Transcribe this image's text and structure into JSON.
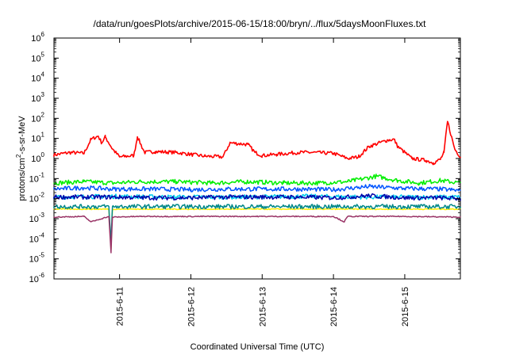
{
  "chart_data": {
    "type": "line",
    "title": "/data/run/goesPlots/archive/2015-06-15/18:00/bryn/../flux/5daysMoonFluxes.txt",
    "xlabel": "Coordinated Universal Time (UTC)",
    "ylabel": {
      "pre": "protons/cm",
      "sup": "2",
      "post": "-s-sr-MeV"
    },
    "yscale": "log",
    "ylim": [
      1e-06,
      1000000.0
    ],
    "y_ticks": [
      {
        "base": "10",
        "exp": "-6",
        "v": -6
      },
      {
        "base": "10",
        "exp": "-5",
        "v": -5
      },
      {
        "base": "10",
        "exp": "-4",
        "v": -4
      },
      {
        "base": "10",
        "exp": "-3",
        "v": -3
      },
      {
        "base": "10",
        "exp": "-2",
        "v": -2
      },
      {
        "base": "10",
        "exp": "-1",
        "v": -1
      },
      {
        "base": "10",
        "exp": "0",
        "v": 0
      },
      {
        "base": "10",
        "exp": "1",
        "v": 1
      },
      {
        "base": "10",
        "exp": "2",
        "v": 2
      },
      {
        "base": "10",
        "exp": "3",
        "v": 3
      },
      {
        "base": "10",
        "exp": "4",
        "v": 4
      },
      {
        "base": "10",
        "exp": "5",
        "v": 5
      },
      {
        "base": "10",
        "exp": "6",
        "v": 6
      }
    ],
    "xlim": [
      2015.061,
      2015.0615775
    ],
    "x_ticks": [
      {
        "label": "2015-6-11",
        "day": 11
      },
      {
        "label": "2015-6-12",
        "day": 12
      },
      {
        "label": "2015-6-13",
        "day": 13
      },
      {
        "label": "2015-6-14",
        "day": 14
      },
      {
        "label": "2015-6-15",
        "day": 15
      }
    ],
    "x_range_days": [
      10.08,
      15.78
    ],
    "grid": false,
    "legend": "none",
    "series": [
      {
        "color": "#ff0000",
        "x": [
          10.08,
          10.3,
          10.5,
          10.6,
          10.7,
          10.75,
          10.8,
          10.9,
          11.0,
          11.2,
          11.25,
          11.35,
          11.5,
          11.8,
          12.0,
          12.2,
          12.45,
          12.55,
          12.8,
          12.9,
          13.0,
          13.2,
          13.5,
          13.7,
          14.0,
          14.2,
          14.35,
          14.5,
          14.75,
          14.85,
          14.9,
          15.1,
          15.3,
          15.4,
          15.5,
          15.55,
          15.6,
          15.7,
          15.78
        ],
        "y": [
          1.5,
          2,
          1.8,
          9,
          13,
          6,
          12,
          3,
          1.2,
          1.4,
          12,
          2,
          2.2,
          2,
          1.6,
          1.3,
          1.2,
          6,
          5,
          2,
          1.4,
          1.6,
          2,
          2,
          1.8,
          1,
          1.2,
          4,
          8,
          9,
          4,
          1,
          0.8,
          0.6,
          0.9,
          2,
          70,
          3,
          1.2
        ]
      },
      {
        "color": "#00ee00",
        "x": [
          10.08,
          10.5,
          10.9,
          11.3,
          11.8,
          12.3,
          12.8,
          13.3,
          13.8,
          14.2,
          14.6,
          14.9,
          15.2,
          15.5,
          15.78
        ],
        "y": [
          0.06,
          0.07,
          0.06,
          0.07,
          0.07,
          0.06,
          0.07,
          0.06,
          0.06,
          0.07,
          0.13,
          0.08,
          0.06,
          0.08,
          0.06
        ]
      },
      {
        "color": "#00ccee",
        "x": [
          10.08,
          10.9,
          11.8,
          12.7,
          13.6,
          14.5,
          15.2,
          15.78
        ],
        "y": [
          0.012,
          0.013,
          0.012,
          0.012,
          0.013,
          0.012,
          0.012,
          0.012
        ]
      },
      {
        "color": "#0055ff",
        "x": [
          10.08,
          10.5,
          10.9,
          11.5,
          12.0,
          12.5,
          13.0,
          13.5,
          14.0,
          14.5,
          15.0,
          15.5,
          15.78
        ],
        "y": [
          0.03,
          0.035,
          0.03,
          0.03,
          0.028,
          0.03,
          0.03,
          0.03,
          0.028,
          0.04,
          0.032,
          0.03,
          0.025
        ]
      },
      {
        "color": "#0000aa",
        "x": [
          10.08,
          10.5,
          10.9,
          11.5,
          12.0,
          12.5,
          13.0,
          13.5,
          14.0,
          14.5,
          15.0,
          15.5,
          15.78
        ],
        "y": [
          0.012,
          0.012,
          0.012,
          0.011,
          0.011,
          0.012,
          0.012,
          0.012,
          0.011,
          0.014,
          0.011,
          0.011,
          0.01
        ]
      },
      {
        "color": "#ffee00",
        "x": [
          10.08,
          10.5,
          10.85,
          10.88,
          10.9,
          11.3,
          12.0,
          12.7,
          13.5,
          14.2,
          15.0,
          15.78
        ],
        "y": [
          0.003,
          0.003,
          0.003,
          3e-05,
          0.003,
          0.003,
          0.003,
          0.003,
          0.003,
          0.003,
          0.003,
          0.003
        ]
      },
      {
        "color": "#008888",
        "x": [
          10.08,
          10.5,
          10.85,
          10.88,
          10.9,
          11.5,
          12.5,
          13.5,
          14.2,
          15.0,
          15.78
        ],
        "y": [
          0.004,
          0.004,
          0.004,
          5e-05,
          0.004,
          0.004,
          0.004,
          0.004,
          0.004,
          0.004,
          0.004
        ]
      },
      {
        "color": "#993366",
        "x": [
          10.08,
          10.5,
          10.6,
          10.85,
          10.88,
          10.9,
          11.3,
          12.0,
          13.0,
          14.0,
          14.15,
          14.2,
          15.0,
          15.78
        ],
        "y": [
          0.0012,
          0.0013,
          0.0007,
          0.0013,
          2e-05,
          0.0012,
          0.0013,
          0.0013,
          0.0013,
          0.0013,
          0.0007,
          0.0013,
          0.0013,
          0.0012
        ]
      }
    ]
  }
}
